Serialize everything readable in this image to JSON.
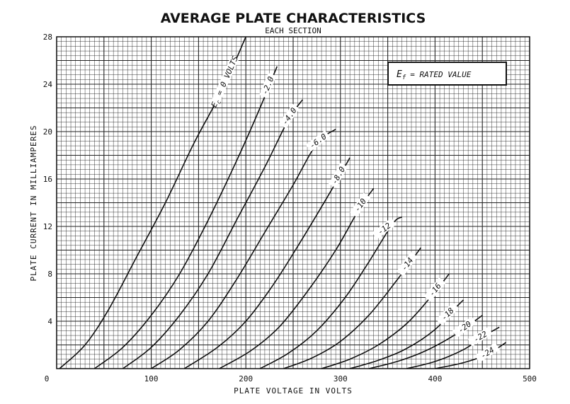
{
  "chart_data": {
    "type": "line",
    "title": "AVERAGE PLATE CHARACTERISTICS",
    "subtitle": "EACH SECTION",
    "xlabel": "PLATE VOLTAGE IN VOLTS",
    "ylabel": "PLATE CURRENT IN MILLIAMPERES",
    "xlim": [
      0,
      500
    ],
    "ylim": [
      0,
      28
    ],
    "x_ticks": [
      0,
      100,
      200,
      300,
      400,
      500
    ],
    "y_ticks": [
      0,
      4,
      8,
      12,
      16,
      20,
      24,
      28
    ],
    "x_tick_labels": [
      "0",
      "100",
      "200",
      "300",
      "400",
      "500"
    ],
    "y_tick_labels": [
      "",
      "4",
      "8",
      "12",
      "16",
      "20",
      "24",
      "28"
    ],
    "grid": true,
    "annotation": {
      "symbol": "E",
      "subscript": "f",
      "text": "= RATED VALUE",
      "location": "top-right"
    },
    "series": [
      {
        "name": "Ec = 0 VOLTS",
        "label": "0 VOLTS",
        "label_prefix": "E",
        "label_subscript": "c",
        "label_eq": "=",
        "points": [
          [
            3,
            0
          ],
          [
            30,
            2
          ],
          [
            55,
            5
          ],
          [
            85,
            9.5
          ],
          [
            115,
            14
          ],
          [
            145,
            19
          ],
          [
            175,
            23.5
          ],
          [
            200,
            28
          ]
        ]
      },
      {
        "name": "-2.0",
        "label": "-2.0",
        "points": [
          [
            40,
            0
          ],
          [
            70,
            1.8
          ],
          [
            100,
            4.5
          ],
          [
            130,
            8
          ],
          [
            160,
            12.5
          ],
          [
            190,
            17.5
          ],
          [
            215,
            22
          ],
          [
            233,
            25.5
          ]
        ]
      },
      {
        "name": "-4.0",
        "label": "-4.0",
        "points": [
          [
            70,
            0
          ],
          [
            100,
            1.8
          ],
          [
            130,
            4.5
          ],
          [
            160,
            8
          ],
          [
            190,
            12.5
          ],
          [
            220,
            17
          ],
          [
            245,
            21
          ],
          [
            260,
            22.7
          ]
        ]
      },
      {
        "name": "-6.0",
        "label": "-6.0",
        "points": [
          [
            100,
            0
          ],
          [
            130,
            1.6
          ],
          [
            160,
            4
          ],
          [
            190,
            7.5
          ],
          [
            220,
            11.5
          ],
          [
            250,
            15.5
          ],
          [
            275,
            19
          ],
          [
            295,
            20.2
          ]
        ]
      },
      {
        "name": "-8.0",
        "label": "-8.0",
        "points": [
          [
            135,
            0
          ],
          [
            170,
            1.8
          ],
          [
            200,
            4
          ],
          [
            230,
            7.2
          ],
          [
            260,
            11
          ],
          [
            290,
            15
          ],
          [
            310,
            17.8
          ]
        ]
      },
      {
        "name": "-10",
        "label": "-10",
        "points": [
          [
            172,
            0
          ],
          [
            205,
            1.5
          ],
          [
            235,
            3.5
          ],
          [
            265,
            6.5
          ],
          [
            295,
            10
          ],
          [
            320,
            13.5
          ],
          [
            335,
            15.2
          ]
        ]
      },
      {
        "name": "-12",
        "label": "-12",
        "points": [
          [
            215,
            0
          ],
          [
            245,
            1.3
          ],
          [
            275,
            3.2
          ],
          [
            305,
            6
          ],
          [
            330,
            9
          ],
          [
            355,
            12.2
          ],
          [
            365,
            12.8
          ]
        ]
      },
      {
        "name": "-14",
        "label": "-14",
        "points": [
          [
            240,
            0
          ],
          [
            270,
            0.9
          ],
          [
            300,
            2.3
          ],
          [
            330,
            4.5
          ],
          [
            360,
            7.5
          ],
          [
            385,
            10.2
          ]
        ]
      },
      {
        "name": "-16",
        "label": "-16",
        "points": [
          [
            280,
            0
          ],
          [
            310,
            0.8
          ],
          [
            340,
            2
          ],
          [
            370,
            3.8
          ],
          [
            395,
            6
          ],
          [
            415,
            8
          ]
        ]
      },
      {
        "name": "-18",
        "label": "-18",
        "points": [
          [
            310,
            0
          ],
          [
            340,
            0.7
          ],
          [
            370,
            1.7
          ],
          [
            400,
            3.3
          ],
          [
            420,
            5
          ],
          [
            430,
            5.8
          ]
        ]
      },
      {
        "name": "-20",
        "label": "-20",
        "points": [
          [
            330,
            0
          ],
          [
            360,
            0.6
          ],
          [
            390,
            1.5
          ],
          [
            420,
            2.8
          ],
          [
            445,
            4.2
          ],
          [
            450,
            4.5
          ]
        ]
      },
      {
        "name": "-22",
        "label": "-22",
        "points": [
          [
            370,
            0
          ],
          [
            400,
            0.6
          ],
          [
            430,
            1.6
          ],
          [
            455,
            2.9
          ],
          [
            468,
            3.5
          ]
        ]
      },
      {
        "name": "-24",
        "label": "-24",
        "points": [
          [
            400,
            0
          ],
          [
            430,
            0.5
          ],
          [
            455,
            1.2
          ],
          [
            475,
            2.2
          ]
        ]
      }
    ]
  }
}
